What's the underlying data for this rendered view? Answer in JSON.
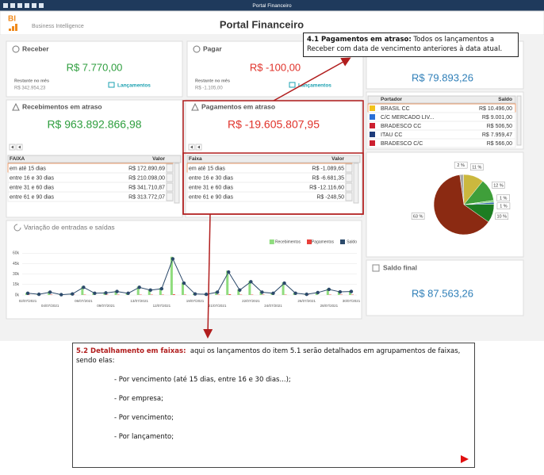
{
  "window": {
    "title": "Portal Financeiro"
  },
  "header": {
    "logo": "BI",
    "subtitle": "Business Intelligence",
    "title": "Portal Financeiro"
  },
  "receber": {
    "title": "Receber",
    "value": "R$ 7.770,00",
    "remaining_label": "Restante no mês",
    "remaining": "R$ 342.954,23",
    "link": "Lançamentos"
  },
  "pagar": {
    "title": "Pagar",
    "value": "R$ -100,00",
    "remaining_label": "Restante no mês",
    "remaining": "R$ -1.105,00",
    "link": "Lançamentos"
  },
  "saldo_card": {
    "value": "R$ 79.893,26"
  },
  "recebimentos_atraso": {
    "title": "Recebimentos em atraso",
    "total": "R$ 963.892.866,98",
    "columns": [
      "FAIXA",
      "Valor"
    ],
    "rows": [
      [
        "em até 15 dias",
        "R$ 172.890,69"
      ],
      [
        "entre 16 e 30 dias",
        "R$ 210.098,00"
      ],
      [
        "entre 31 e 60 dias",
        "R$ 341.710,87"
      ],
      [
        "entre 61 e 90 dias",
        "R$ 313.772,07"
      ]
    ]
  },
  "pagamentos_atraso": {
    "title": "Pagamentos em atraso",
    "total": "R$ -19.605.807,95",
    "columns": [
      "Faixa",
      "Valor"
    ],
    "rows": [
      [
        "em até 15 dias",
        "R$ -1.089,65"
      ],
      [
        "entre 16 e 30 dias",
        "R$ -6.681,35"
      ],
      [
        "entre 31 e 60 dias",
        "R$ -12.116,60"
      ],
      [
        "entre 61 e 90 dias",
        "R$ -248,50"
      ]
    ]
  },
  "portador": {
    "columns": [
      "Portador",
      "Saldo"
    ],
    "rows": [
      [
        "BRASIL CC",
        "R$ 10.496,00"
      ],
      [
        "C/C MERCADO LIV...",
        "R$ 9.001,00"
      ],
      [
        "BRADESCO CC",
        "R$ 506,50"
      ],
      [
        "ITAU CC",
        "R$ 7.959,47"
      ],
      [
        "BRADESCO C/C",
        "R$ 566,00"
      ]
    ]
  },
  "saldo_final": {
    "title": "Saldo final",
    "value": "R$ 87.563,26"
  },
  "callout_41": {
    "heading": "4.1 Pagamentos em atraso:",
    "text": "Todos os lançamentos a Receber com data de vencimento anteriores à data atual."
  },
  "callout_52": {
    "heading": "5.2 Detalhamento em faixas:",
    "text": "aqui os lançamentos do item 5.1 serão detalhados em agrupamentos de faixas, sendo elas:",
    "items": [
      "- Por vencimento (até 15 dias, entre 16 e 30 dias...);",
      "- Por empresa;",
      "- Por vencimento;",
      "- Por lançamento;"
    ]
  },
  "chart_data": [
    {
      "type": "bar",
      "title": "Variação de entradas e saídas",
      "legend": "top-right",
      "grid": true,
      "categories": [
        "02/07/2021",
        null,
        "04/07/2021",
        null,
        null,
        "06/07/2021",
        null,
        "09/07/2021",
        null,
        null,
        "13/07/2021",
        null,
        "12/07/2021",
        null,
        null,
        "19/07/2021",
        null,
        "21/07/2021",
        null,
        null,
        "22/07/2021",
        null,
        "24/07/2021",
        null,
        null,
        "26/07/2021",
        null,
        "28/07/2021",
        null,
        "30/07/2021"
      ],
      "ylim": [
        0,
        65000
      ],
      "yticks": [
        {
          "value": 0,
          "label": "0k"
        },
        {
          "value": 15000,
          "label": "15k"
        },
        {
          "value": 30000,
          "label": "30k"
        },
        {
          "value": 45000,
          "label": "45k"
        },
        {
          "value": 60000,
          "label": "60k"
        }
      ],
      "series": [
        {
          "name": "Recebimentos",
          "color": "#8fdc7e",
          "type": "bar",
          "values": [
            3000,
            1500,
            5000,
            1000,
            2000,
            12000,
            3000,
            4000,
            6000,
            3000,
            12000,
            8000,
            10000,
            55000,
            18000,
            2000,
            1500,
            5000,
            35000,
            8000,
            20000,
            5000,
            3000,
            18000,
            3000,
            1500,
            4000,
            9000,
            5000,
            6000
          ]
        },
        {
          "name": "Pagamentos",
          "color": "#e8403a",
          "type": "bar",
          "values": [
            500,
            0,
            500,
            0,
            500,
            500,
            0,
            500,
            500,
            0,
            500,
            500,
            500,
            1000,
            500,
            0,
            500,
            500,
            1000,
            500,
            500,
            500,
            0,
            500,
            0,
            500,
            0,
            500,
            500,
            500
          ]
        },
        {
          "name": "Saldo",
          "color": "#2c4a6b",
          "type": "line",
          "values": [
            2500,
            1000,
            4000,
            500,
            1500,
            11000,
            2500,
            3000,
            5000,
            2500,
            11000,
            7000,
            9000,
            52000,
            17000,
            1500,
            1000,
            4000,
            33000,
            7000,
            19000,
            4000,
            2500,
            17000,
            2500,
            1000,
            3500,
            8000,
            4500,
            5000
          ]
        }
      ]
    },
    {
      "type": "pie",
      "values": [
        2,
        11,
        12,
        1,
        1,
        10,
        63
      ],
      "value_labels": [
        "2 %",
        "11 %",
        "12 %",
        "1 %",
        "1 %",
        "10 %",
        "63 %"
      ],
      "colors": [
        "#a9a9a9",
        "#cbb83e",
        "#3f9f3a",
        "#80d27a",
        "#2a63a8",
        "#1d7d22",
        "#8b2a12"
      ]
    }
  ]
}
